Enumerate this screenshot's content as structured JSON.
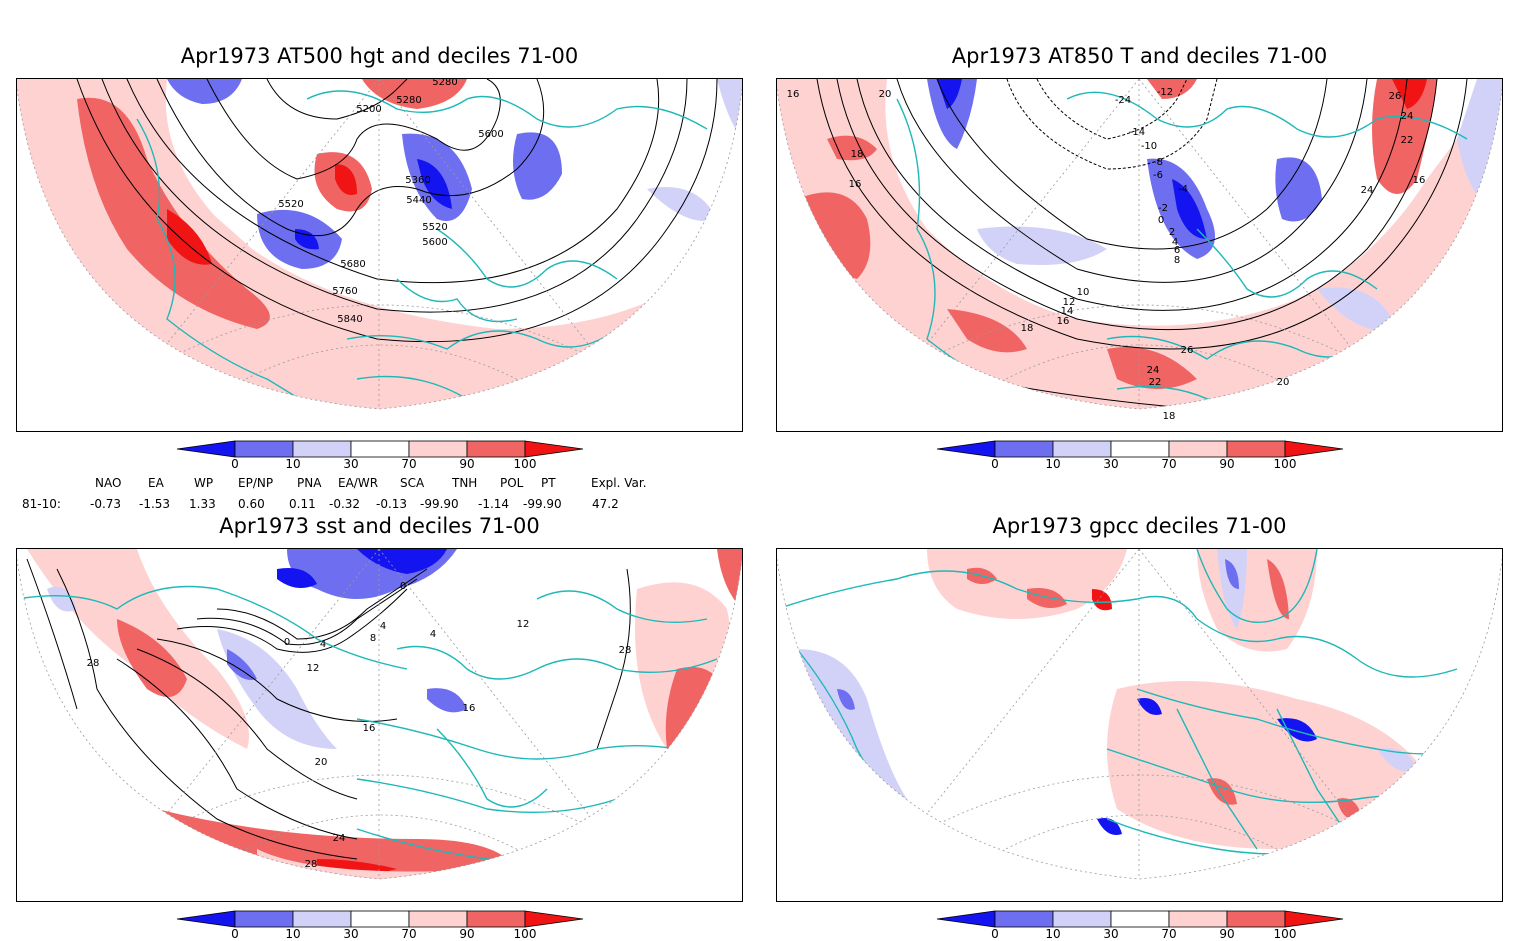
{
  "panels": [
    {
      "id": "p1",
      "title": "Apr1973 AT500 hgt and deciles 71-00",
      "contour_labels": [
        "5280",
        "5280",
        "5200",
        "5600",
        "5360",
        "5440",
        "5520",
        "5520",
        "5600",
        "5680",
        "5760",
        "5840"
      ]
    },
    {
      "id": "p2",
      "title": "Apr1973 AT850 T and deciles 71-00",
      "contour_labels": [
        "16",
        "20",
        "-24",
        "-12",
        "-14",
        "-10",
        "-8",
        "-6",
        "-4",
        "-2",
        "0",
        "2",
        "4",
        "6",
        "8",
        "10",
        "12",
        "14",
        "16",
        "18",
        "18",
        "16",
        "24",
        "22",
        "24",
        "26",
        "24",
        "22",
        "20",
        "18",
        "26",
        "16"
      ]
    },
    {
      "id": "p3",
      "title": "Apr1973 sst and deciles 71-00",
      "contour_labels": [
        "0",
        "0",
        "4",
        "8",
        "4",
        "4",
        "12",
        "12",
        "16",
        "16",
        "20",
        "24",
        "28",
        "28",
        "28"
      ]
    },
    {
      "id": "p4",
      "title": "Apr1973 gpcc deciles 71-00",
      "contour_labels": []
    }
  ],
  "colorbar": {
    "ticks": [
      "0",
      "10",
      "30",
      "70",
      "90",
      "100"
    ],
    "colors": [
      "#1414f0",
      "#6e6ef0",
      "#d2d2f8",
      "#ffffff",
      "#ffd2d2",
      "#f06464",
      "#f01414"
    ]
  },
  "indices": {
    "headers": [
      "NAO",
      "EA",
      "WP",
      "EP/NP",
      "PNA",
      "EA/WR",
      "SCA",
      "TNH",
      "POL",
      "PT",
      "Expl. Var."
    ],
    "row_label": "81-10:",
    "values": [
      "-0.73",
      "-1.53",
      "1.33",
      "0.60",
      "0.11",
      "-0.32",
      "-0.13",
      "-99.90",
      "-1.14",
      "-99.90",
      "47.2"
    ]
  },
  "colors": {
    "coast": "#1fb8b8",
    "grid": "#9a9a9a",
    "contour": "#000000"
  }
}
